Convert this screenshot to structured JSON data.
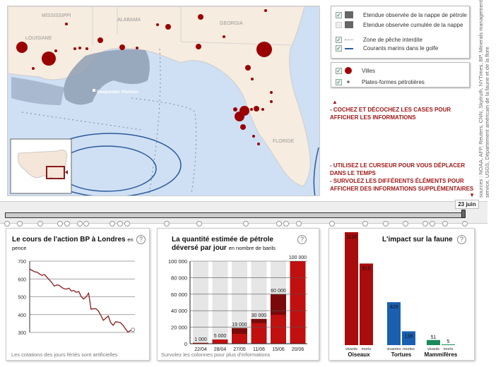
{
  "map": {
    "states": [
      "MISSISSIPPI",
      "ALABAMA",
      "GEORGIA",
      "LOUISIANE",
      "FLORIDE"
    ],
    "spill_label": "Deepwater Horizon"
  },
  "legend": {
    "items": [
      {
        "label": "Etendue observée de la nappe de pétrole",
        "checked": true,
        "color": "#666666"
      },
      {
        "label": "Etendue observée cumulée de la nappe",
        "checked": false,
        "color": "#666666"
      },
      {
        "label": "Zone de pêche interdite",
        "checked": true
      },
      {
        "label": "Courants marins dans le golfe",
        "checked": true,
        "color": "#2b5a9a"
      }
    ],
    "items2": [
      {
        "label": "Villes",
        "checked": true,
        "color": "#a00000"
      },
      {
        "label": "Plates-formes pétrolières",
        "checked": true
      }
    ],
    "check_mark": "✓"
  },
  "notes": {
    "arrow_up": "▲",
    "note1": "- COCHEZ ET DÉCOCHEZ LES CASES POUR AFFICHER LES INFORMATIONS",
    "note2": "- UTILISEZ LE CURSEUR POUR VOUS DÉPLACER DANS LE TEMPS",
    "note3": "- SURVOLEZ LES DIFFÉRENTS ÉLÉMENTS POUR AFFICHER DES INFORMATIONS SUPPLÉMENTAIRES",
    "arrow_down": "▼"
  },
  "sources": "sources : NOAA, AFP, Reuters, CNN, Skytruth, NYTimes, BP, Minerals management service, USGS, Département américain de la faune et de la flore",
  "timeline": {
    "current_date": "23 juin",
    "progress": 1.0,
    "event_count": 24
  },
  "chart_data": [
    {
      "type": "line",
      "title": "Le cours de l'action BP à Londres",
      "subtitle": "en pence",
      "footnote": "Les cotations des jours fériés sont artificielles",
      "ylim": [
        300,
        700
      ],
      "yticks": [
        "700",
        "600",
        "500",
        "400",
        "300"
      ],
      "values": [
        655,
        648,
        640,
        638,
        628,
        620,
        625,
        610,
        595,
        580,
        560,
        566,
        565,
        553,
        545,
        543,
        548,
        532,
        535,
        525,
        530,
        500,
        487,
        500,
        520,
        430,
        433,
        433,
        420,
        395,
        368,
        380,
        392,
        355,
        340,
        360,
        358,
        355,
        340,
        320,
        302,
        310,
        315
      ]
    },
    {
      "type": "bar",
      "title": "La quantité estimée de pétrole déversé par jour",
      "subtitle": "en nombre de barils",
      "footnote": "Survolez les colonnes pour plus d'informations",
      "ylim": [
        0,
        100000
      ],
      "yticks": [
        "100 000",
        "80 000",
        "60 000",
        "40 000",
        "20 000",
        "0"
      ],
      "categories": [
        "22/04",
        "28/04",
        "27/05",
        "11/06",
        "15/06",
        "20/06"
      ],
      "values": [
        1000,
        5000,
        19000,
        30000,
        60000,
        100000
      ],
      "labels": [
        "1 000",
        "5 000",
        "19 000",
        "30 000",
        "60 000",
        "100 000"
      ],
      "lower_values": [
        1000,
        5000,
        12000,
        25000,
        35000,
        100000
      ],
      "colors": {
        "lower": "#c01010",
        "upper": "#7a0a0a",
        "background": "#e6e6e6"
      }
    },
    {
      "type": "bar",
      "title": "L'impact sur la faune",
      "groups": [
        {
          "name": "Oiseaux",
          "color": "#a80c0c",
          "bars": [
            {
              "label": "vivants",
              "value": 1128
            },
            {
              "label": "morts",
              "value": 815
            }
          ]
        },
        {
          "name": "Tortues",
          "color": "#1a5fb0",
          "bars": [
            {
              "label": "vivantes",
              "value": 429
            },
            {
              "label": "mortes",
              "value": 138
            }
          ]
        },
        {
          "name": "Mammifères",
          "color": "#1a8a5a",
          "bars": [
            {
              "label": "vivants",
              "value": 51
            },
            {
              "label": "morts",
              "value": 5
            }
          ]
        }
      ]
    }
  ],
  "help_icon": "?"
}
